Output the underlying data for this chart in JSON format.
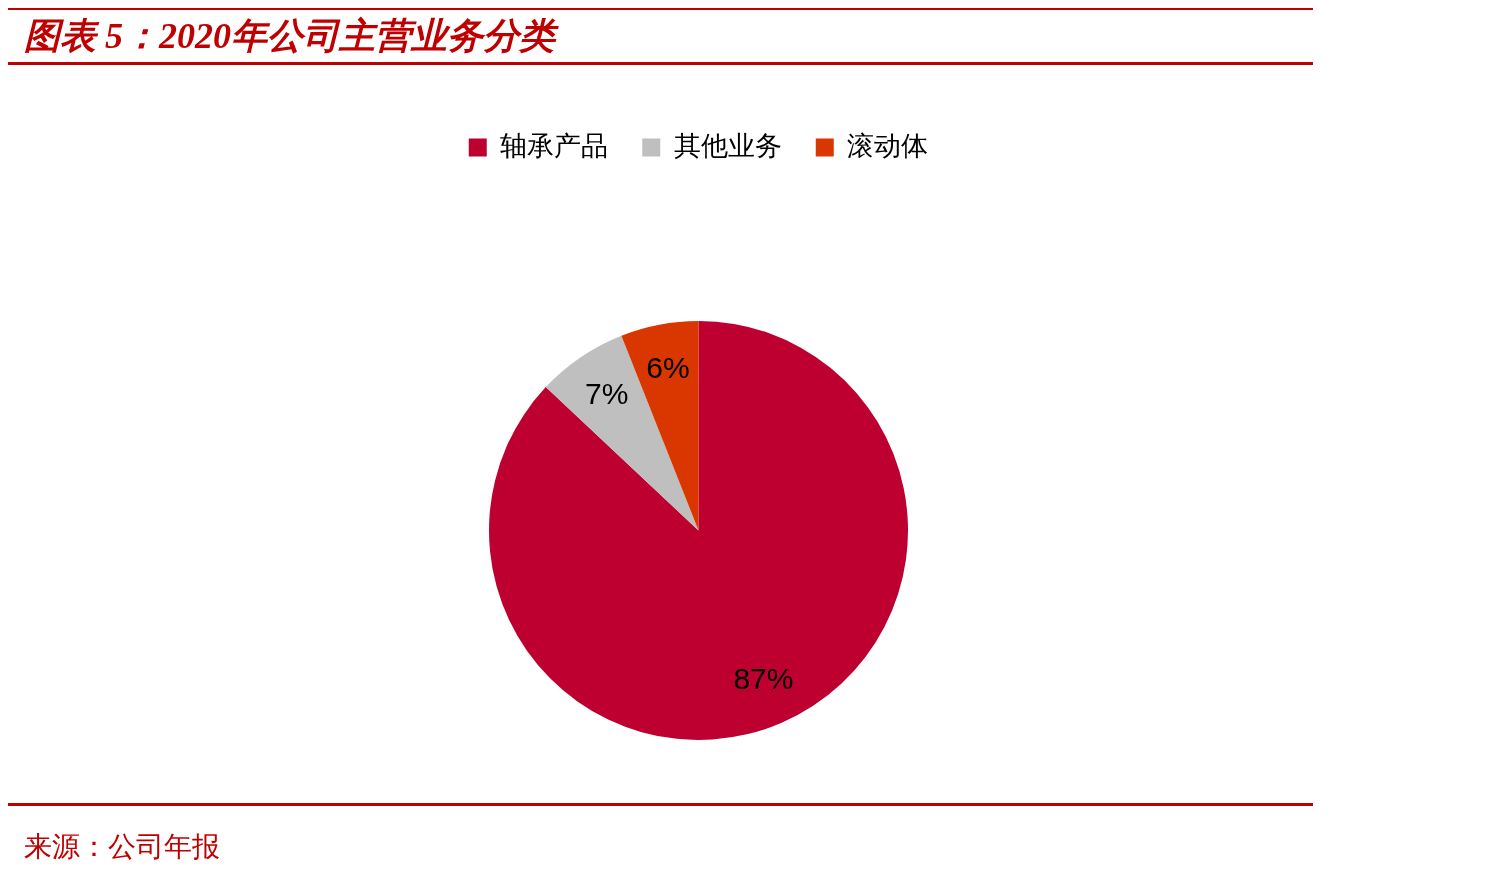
{
  "chart_data": {
    "type": "pie",
    "title": "图表 5：2020年公司主营业务分类",
    "categories": [
      "轴承产品",
      "其他业务",
      "滚动体"
    ],
    "values": [
      87,
      7,
      6
    ],
    "value_labels": [
      "87%",
      "7%",
      "6%"
    ],
    "colors": [
      "#bd0030",
      "#bfbfbf",
      "#d93600"
    ],
    "legend": "top",
    "annotations": [
      "来源：公司年报"
    ]
  }
}
